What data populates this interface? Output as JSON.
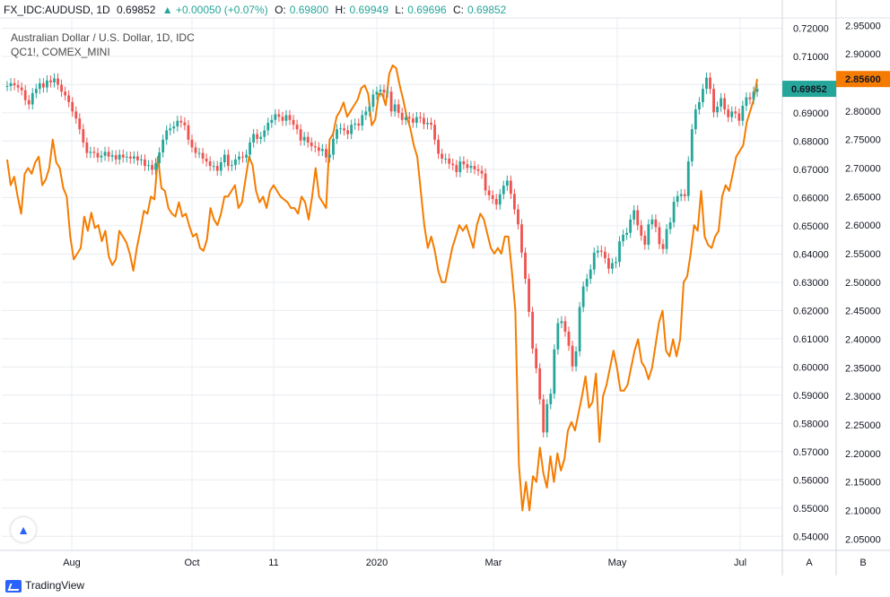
{
  "header": {
    "symbol": "FX_IDC:AUDUSD, 1D",
    "last": "0.69852",
    "change": "▲ +0.00050 (+0.07%)",
    "open_label": "O:",
    "open": "0.69800",
    "high_label": "H:",
    "high": "0.69949",
    "low_label": "L:",
    "low": "0.69696",
    "close_label": "C:",
    "close": "0.69852"
  },
  "chart_title": "Australian Dollar / U.S. Dollar, 1D, IDC",
  "overlay_title": "QC1!, COMEX_MINI",
  "axis_buttons": {
    "a": "A",
    "b": "B"
  },
  "brand": "TradingView",
  "colors": {
    "up": "#26a69a",
    "down": "#ef5350",
    "overlay": "#f57c00",
    "grid": "#e9ecf1"
  },
  "chart_data": {
    "type": "line",
    "x_ticks": [
      "Aug",
      "Oct",
      "11",
      "2020",
      "Mar",
      "May",
      "Jul"
    ],
    "y_left_ticks": [
      "0.72000",
      "0.71000",
      "0.70000",
      "0.69000",
      "0.68000",
      "0.67000",
      "0.66000",
      "0.65000",
      "0.64000",
      "0.63000",
      "0.62000",
      "0.61000",
      "0.60000",
      "0.59000",
      "0.58000",
      "0.57000",
      "0.56000",
      "0.55000",
      "0.54000"
    ],
    "y_right_ticks": [
      "2.95000",
      "2.90000",
      "2.85000",
      "2.80000",
      "2.75000",
      "2.70000",
      "2.65000",
      "2.60000",
      "2.55000",
      "2.50000",
      "2.45000",
      "2.40000",
      "2.35000",
      "2.30000",
      "2.25000",
      "2.20000",
      "2.15000",
      "2.10000",
      "2.05000"
    ],
    "y_left_range": [
      0.535,
      0.723
    ],
    "y_right_range": [
      2.03,
      2.96
    ],
    "last_left_label": "0.69852",
    "last_right_label": "2.85600",
    "series": [
      {
        "name": "AUDUSD",
        "style": "candles",
        "values": [
          0.6995,
          0.7005,
          0.6998,
          0.699,
          0.698,
          0.6945,
          0.693,
          0.697,
          0.6985,
          0.7005,
          0.699,
          0.7015,
          0.7008,
          0.7022,
          0.7,
          0.6975,
          0.6962,
          0.6938,
          0.6905,
          0.688,
          0.6842,
          0.6795,
          0.6758,
          0.6762,
          0.6758,
          0.6742,
          0.6748,
          0.6762,
          0.6745,
          0.675,
          0.6735,
          0.6752,
          0.6742,
          0.6745,
          0.6738,
          0.6746,
          0.6732,
          0.6735,
          0.6712,
          0.6715,
          0.6698,
          0.6722,
          0.676,
          0.6805,
          0.6838,
          0.6845,
          0.6852,
          0.6872,
          0.6866,
          0.6856,
          0.6805,
          0.6778,
          0.6758,
          0.6758,
          0.6738,
          0.6728,
          0.6712,
          0.6712,
          0.6695,
          0.6725,
          0.6752,
          0.6712,
          0.6715,
          0.6735,
          0.6745,
          0.6742,
          0.6752,
          0.6795,
          0.6825,
          0.6808,
          0.6815,
          0.6838,
          0.6865,
          0.6875,
          0.6895,
          0.6886,
          0.6872,
          0.6892,
          0.6875,
          0.6858,
          0.6842,
          0.6802,
          0.6815,
          0.6795,
          0.6782,
          0.6778,
          0.6765,
          0.6772,
          0.6742,
          0.6752,
          0.6808,
          0.6842,
          0.6845,
          0.6838,
          0.6825,
          0.6858,
          0.6862,
          0.6855,
          0.6892,
          0.6905,
          0.6922,
          0.6965,
          0.6975,
          0.6982,
          0.6972,
          0.6975,
          0.6905,
          0.693,
          0.69,
          0.6875,
          0.6885,
          0.688,
          0.6865,
          0.6885,
          0.6882,
          0.686,
          0.6865,
          0.6858,
          0.6805,
          0.6755,
          0.6738,
          0.6738,
          0.672,
          0.6715,
          0.669,
          0.6728,
          0.6718,
          0.6705,
          0.6712,
          0.67,
          0.6695,
          0.6685,
          0.6625,
          0.6608,
          0.6595,
          0.6575,
          0.6612,
          0.6642,
          0.666,
          0.6613,
          0.6558,
          0.6505,
          0.6405,
          0.6312,
          0.6195,
          0.6065,
          0.5995,
          0.5885,
          0.5768,
          0.5868,
          0.5905,
          0.6062,
          0.6155,
          0.6162,
          0.6125,
          0.6075,
          0.6002,
          0.6055,
          0.6212,
          0.6285,
          0.6312,
          0.6345,
          0.6405,
          0.6412,
          0.6408,
          0.6385,
          0.6348,
          0.6368,
          0.6372,
          0.6445,
          0.6468,
          0.6475,
          0.6522,
          0.6555,
          0.6502,
          0.6465,
          0.6433,
          0.6505,
          0.6522,
          0.6495,
          0.6435,
          0.6418,
          0.6488,
          0.6512,
          0.6585,
          0.6605,
          0.6612,
          0.6605,
          0.6728,
          0.6842,
          0.6912,
          0.6938,
          0.6985,
          0.7025,
          0.6985,
          0.6902,
          0.6922,
          0.6952,
          0.6912,
          0.6885,
          0.6905,
          0.6898,
          0.6872,
          0.6925,
          0.6955,
          0.6948,
          0.6975,
          0.6985
        ]
      },
      {
        "name": "QC1!",
        "style": "line",
        "values": [
          2.715,
          2.67,
          2.685,
          2.65,
          2.62,
          2.69,
          2.7,
          2.69,
          2.71,
          2.72,
          2.67,
          2.68,
          2.7,
          2.75,
          2.71,
          2.7,
          2.665,
          2.65,
          2.58,
          2.54,
          2.55,
          2.56,
          2.615,
          2.59,
          2.622,
          2.595,
          2.6,
          2.572,
          2.59,
          2.545,
          2.53,
          2.54,
          2.59,
          2.58,
          2.57,
          2.55,
          2.52,
          2.56,
          2.59,
          2.625,
          2.62,
          2.65,
          2.645,
          2.72,
          2.665,
          2.66,
          2.63,
          2.62,
          2.615,
          2.64,
          2.615,
          2.62,
          2.598,
          2.58,
          2.585,
          2.56,
          2.555,
          2.575,
          2.63,
          2.61,
          2.6,
          2.62,
          2.65,
          2.65,
          2.66,
          2.67,
          2.63,
          2.64,
          2.68,
          2.72,
          2.705,
          2.66,
          2.64,
          2.65,
          2.63,
          2.66,
          2.67,
          2.66,
          2.65,
          2.645,
          2.64,
          2.63,
          2.63,
          2.62,
          2.65,
          2.64,
          2.61,
          2.65,
          2.7,
          2.65,
          2.64,
          2.63,
          2.75,
          2.76,
          2.79,
          2.8,
          2.815,
          2.79,
          2.8,
          2.81,
          2.82,
          2.84,
          2.845,
          2.83,
          2.775,
          2.785,
          2.83,
          2.83,
          2.81,
          2.865,
          2.88,
          2.875,
          2.845,
          2.82,
          2.79,
          2.77,
          2.74,
          2.72,
          2.66,
          2.6,
          2.56,
          2.58,
          2.555,
          2.52,
          2.5,
          2.5,
          2.53,
          2.56,
          2.58,
          2.6,
          2.59,
          2.6,
          2.58,
          2.56,
          2.6,
          2.62,
          2.61,
          2.585,
          2.56,
          2.55,
          2.56,
          2.55,
          2.58,
          2.58,
          2.52,
          2.45,
          2.18,
          2.1,
          2.15,
          2.1,
          2.16,
          2.15,
          2.21,
          2.165,
          2.14,
          2.195,
          2.15,
          2.2,
          2.17,
          2.19,
          2.24,
          2.255,
          2.24,
          2.27,
          2.3,
          2.335,
          2.28,
          2.29,
          2.34,
          2.22,
          2.3,
          2.32,
          2.35,
          2.38,
          2.35,
          2.31,
          2.31,
          2.32,
          2.35,
          2.38,
          2.4,
          2.36,
          2.35,
          2.33,
          2.35,
          2.39,
          2.43,
          2.45,
          2.38,
          2.37,
          2.4,
          2.37,
          2.4,
          2.5,
          2.51,
          2.55,
          2.6,
          2.59,
          2.66,
          2.58,
          2.565,
          2.56,
          2.58,
          2.59,
          2.65,
          2.67,
          2.66,
          2.69,
          2.72,
          2.73,
          2.74,
          2.78,
          2.8,
          2.82,
          2.856
        ]
      }
    ]
  }
}
